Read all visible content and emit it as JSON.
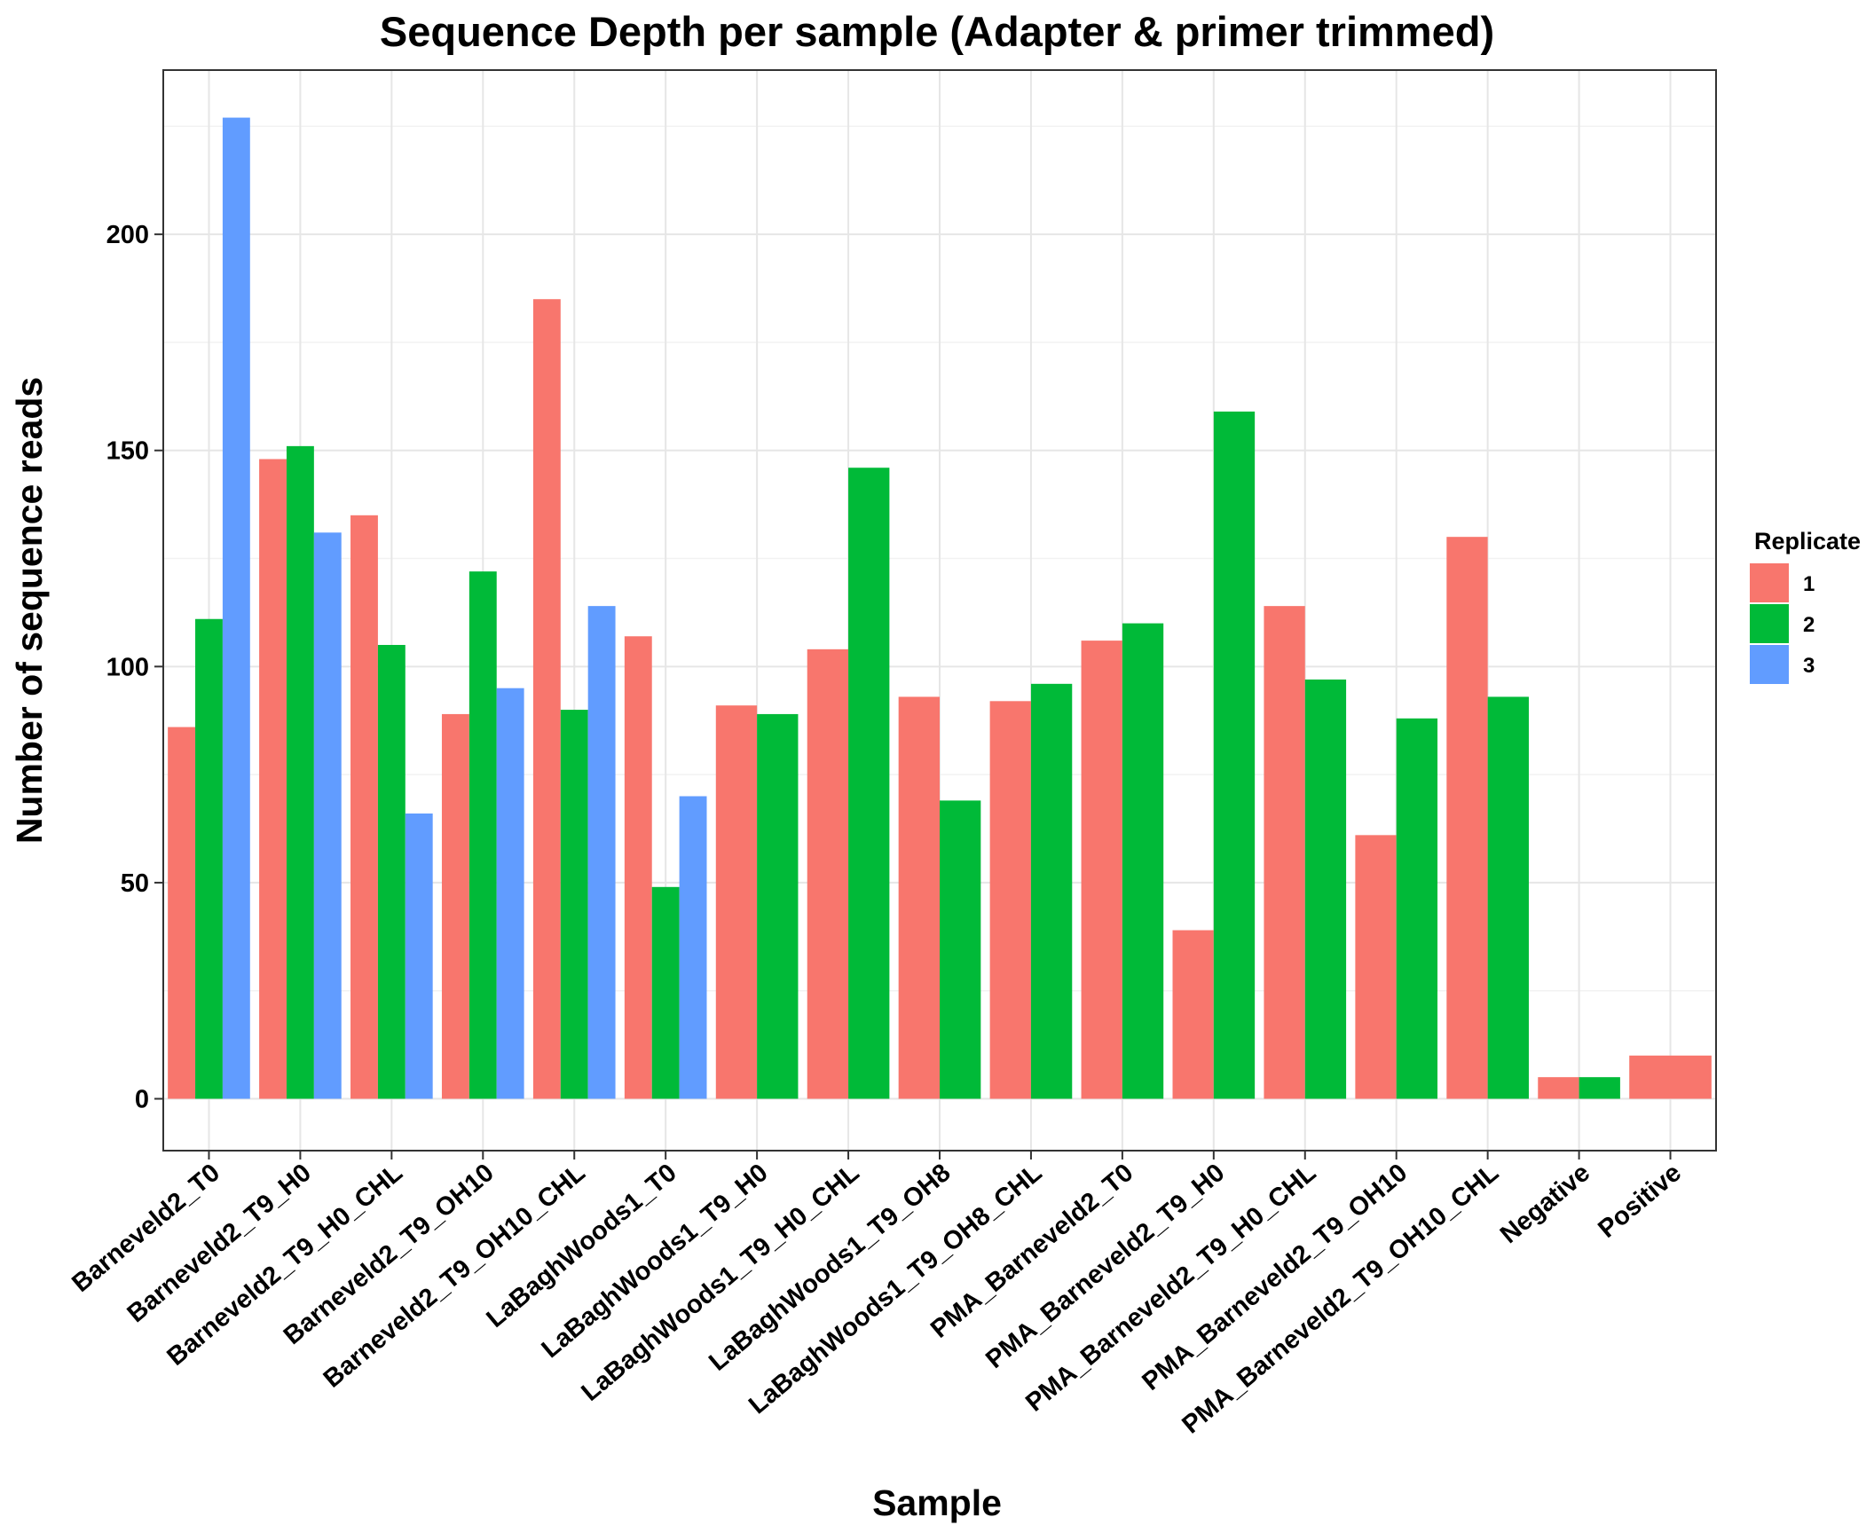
{
  "chart_data": {
    "type": "bar",
    "title": "Sequence Depth per sample (Adapter & primer trimmed)",
    "xlabel": "Sample",
    "ylabel": "Number of sequence reads",
    "ylim": [
      -12,
      238
    ],
    "yticks": [
      0,
      50,
      100,
      150,
      200
    ],
    "grid": true,
    "legend_position": "right",
    "legend_title": "Replicate",
    "categories": [
      "Barneveld2_T0",
      "Barneveld2_T9_H0",
      "Barneveld2_T9_H0_CHL",
      "Barneveld2_T9_OH10",
      "Barneveld2_T9_OH10_CHL",
      "LaBaghWoods1_T0",
      "LaBaghWoods1_T9_H0",
      "LaBaghWoods1_T9_H0_CHL",
      "LaBaghWoods1_T9_OH8",
      "LaBaghWoods1_T9_OH8_CHL",
      "PMA_Barneveld2_T0",
      "PMA_Barneveld2_T9_H0",
      "PMA_Barneveld2_T9_H0_CHL",
      "PMA_Barneveld2_T9_OH10",
      "PMA_Barneveld2_T9_OH10_CHL",
      "Negative",
      "Positive"
    ],
    "series": [
      {
        "name": "1",
        "color": "#F8766D",
        "values": [
          86,
          148,
          135,
          89,
          185,
          107,
          91,
          104,
          93,
          92,
          106,
          39,
          114,
          61,
          130,
          5,
          10
        ]
      },
      {
        "name": "2",
        "color": "#00BA38",
        "values": [
          111,
          151,
          105,
          122,
          90,
          49,
          89,
          146,
          69,
          96,
          110,
          159,
          97,
          88,
          93,
          5,
          null
        ]
      },
      {
        "name": "3",
        "color": "#619CFF",
        "values": [
          227,
          131,
          66,
          95,
          114,
          70,
          null,
          null,
          null,
          null,
          null,
          null,
          null,
          null,
          null,
          null,
          null
        ]
      }
    ]
  }
}
